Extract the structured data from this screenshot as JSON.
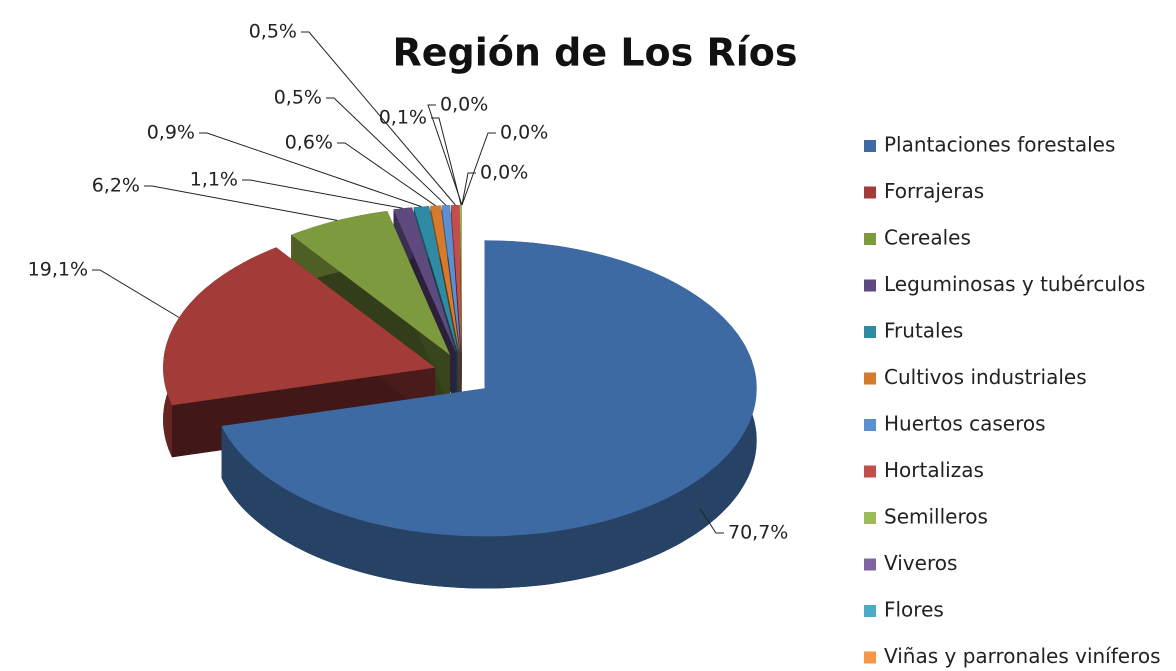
{
  "chart_data": {
    "type": "pie",
    "title": "Región de Los Ríos",
    "categories": [
      "Plantaciones forestales",
      "Forrajeras",
      "Cereales",
      "Leguminosas y tubérculos",
      "Frutales",
      "Cultivos industriales",
      "Huertos caseros",
      "Hortalizas",
      "Semilleros",
      "Viveros",
      "Flores",
      "Viñas y parronales viníferos"
    ],
    "values": [
      70.7,
      19.1,
      6.2,
      1.1,
      0.9,
      0.6,
      0.5,
      0.5,
      0.1,
      0.0,
      0.0,
      0.0
    ],
    "value_labels": [
      "70,7%",
      "19,1%",
      "6,2%",
      "1,1%",
      "0,9%",
      "0,6%",
      "0,5%",
      "0,5%",
      "0,1%",
      "0,0%",
      "0,0%",
      "0,0%"
    ],
    "colors": [
      "#3e6aa3",
      "#a33c39",
      "#7e9a3e",
      "#5f4a80",
      "#2f8ba3",
      "#d67a2b",
      "#5b8fd0",
      "#c34f4c",
      "#9bbb59",
      "#8064a2",
      "#4bacc6",
      "#f79646"
    ],
    "legend": "right"
  }
}
